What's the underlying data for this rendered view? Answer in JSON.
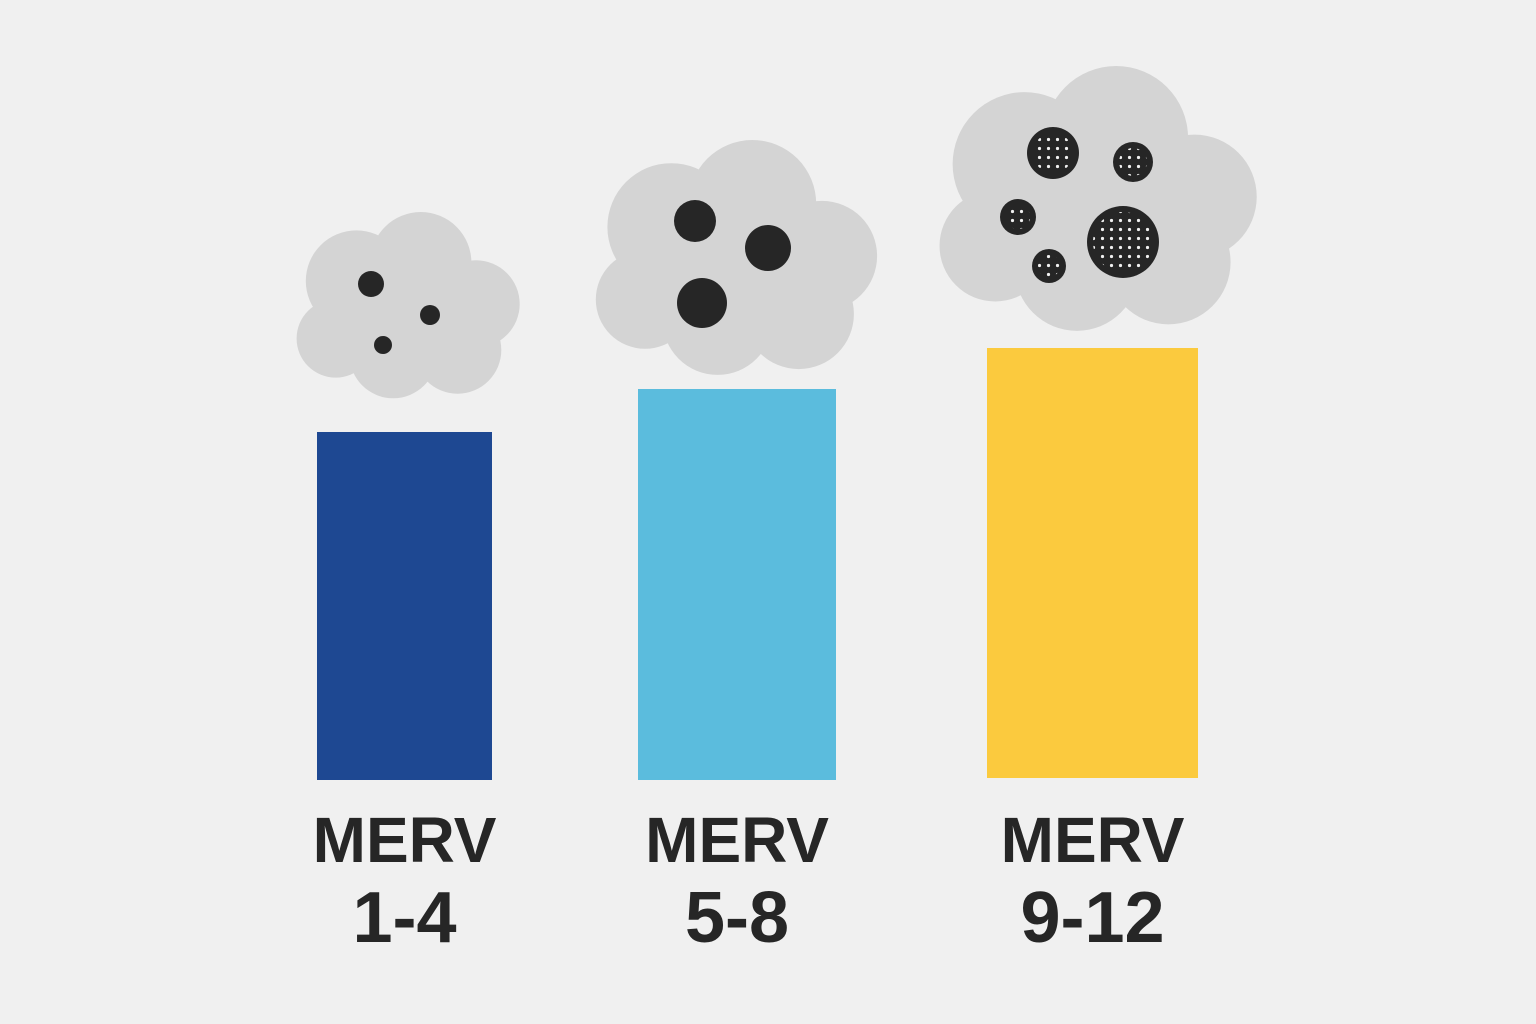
{
  "items": [
    {
      "line1": "MERV",
      "line2": "1-4",
      "color": "#1e4892"
    },
    {
      "line1": "MERV",
      "line2": "5-8",
      "color": "#5bbcdd"
    },
    {
      "line1": "MERV",
      "line2": "9-12",
      "color": "#fbca3e"
    }
  ]
}
